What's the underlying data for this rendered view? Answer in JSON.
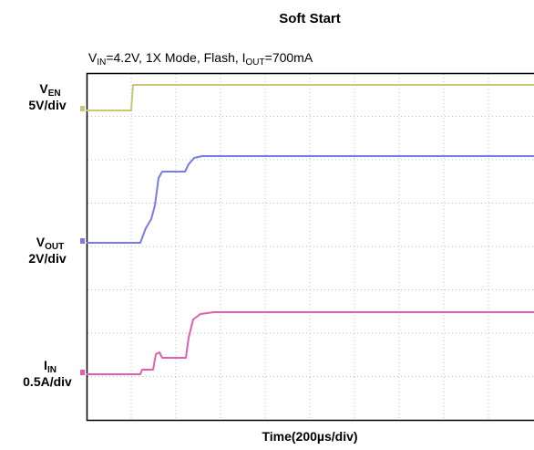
{
  "title": "Soft Start",
  "subtitle": {
    "p1": "V",
    "s1": "IN",
    "p2": "=4.2V, 1X Mode, Flash, I",
    "s2": "OUT",
    "p3": "=700mA"
  },
  "channels": [
    {
      "name": "V",
      "sub": "EN",
      "scale": "5V/div"
    },
    {
      "name": "V",
      "sub": "OUT",
      "scale": "2V/div"
    },
    {
      "name": "I",
      "sub": "IN",
      "scale": "0.5A/div"
    }
  ],
  "x_label": "Time(200µs/div)"
}
